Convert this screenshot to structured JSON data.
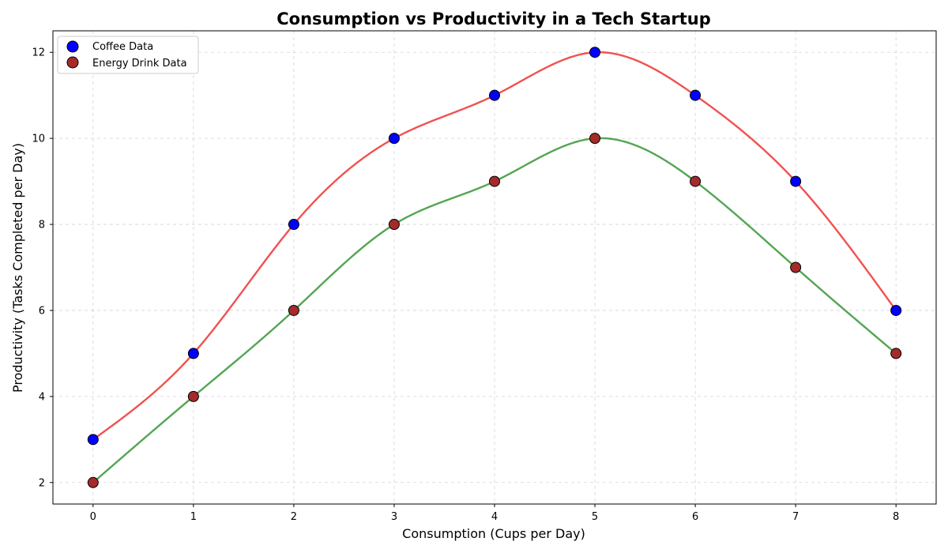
{
  "chart_data": {
    "type": "scatter",
    "title": "Consumption vs Productivity in a Tech Startup",
    "xlabel": "Consumption (Cups per Day)",
    "ylabel": "Productivity (Tasks Completed per Day)",
    "xlim": [
      -0.4,
      8.4
    ],
    "ylim": [
      1.5,
      12.5
    ],
    "xticks": [
      0,
      1,
      2,
      3,
      4,
      5,
      6,
      7,
      8
    ],
    "yticks": [
      2,
      4,
      6,
      8,
      10,
      12
    ],
    "grid": true,
    "legend_position": "top-left",
    "x": [
      0,
      1,
      2,
      3,
      4,
      5,
      6,
      7,
      8
    ],
    "series": [
      {
        "name": "Coffee Data",
        "values": [
          3,
          5,
          8,
          10,
          11,
          12,
          11,
          9,
          6
        ],
        "marker_color": "#0000ff",
        "line_color": "#f04848"
      },
      {
        "name": "Energy Drink Data",
        "values": [
          2,
          4,
          6,
          8,
          9,
          10,
          9,
          7,
          5
        ],
        "marker_color": "#a52a2a",
        "line_color": "#4aa04a"
      }
    ]
  }
}
